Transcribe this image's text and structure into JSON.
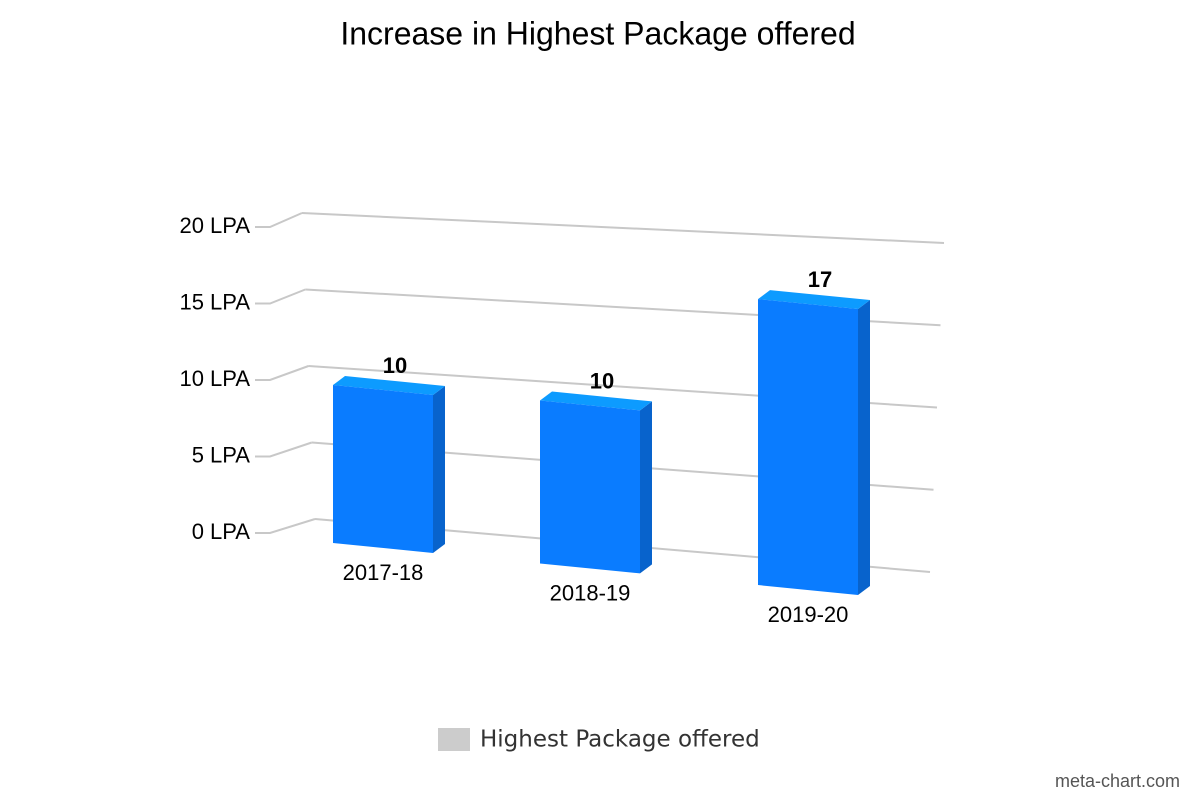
{
  "chart_data": {
    "type": "bar3d",
    "title": "Increase in Highest Package offered",
    "categories": [
      "2017-18",
      "2018-19",
      "2019-20"
    ],
    "series": [
      {
        "name": "Highest Package offered",
        "color": "#0a7cff",
        "values": [
          10,
          10,
          17
        ]
      }
    ],
    "legend_color": "#cccccc",
    "ylim": [
      0,
      20
    ],
    "yticks": [
      {
        "value": 0,
        "label": "0 LPA"
      },
      {
        "value": 5,
        "label": "5 LPA"
      },
      {
        "value": 10,
        "label": "10 LPA"
      },
      {
        "value": 15,
        "label": "15 LPA"
      },
      {
        "value": 20,
        "label": "20 LPA"
      }
    ],
    "grid": true,
    "legend": "bottom",
    "credit": "meta-chart.com"
  }
}
